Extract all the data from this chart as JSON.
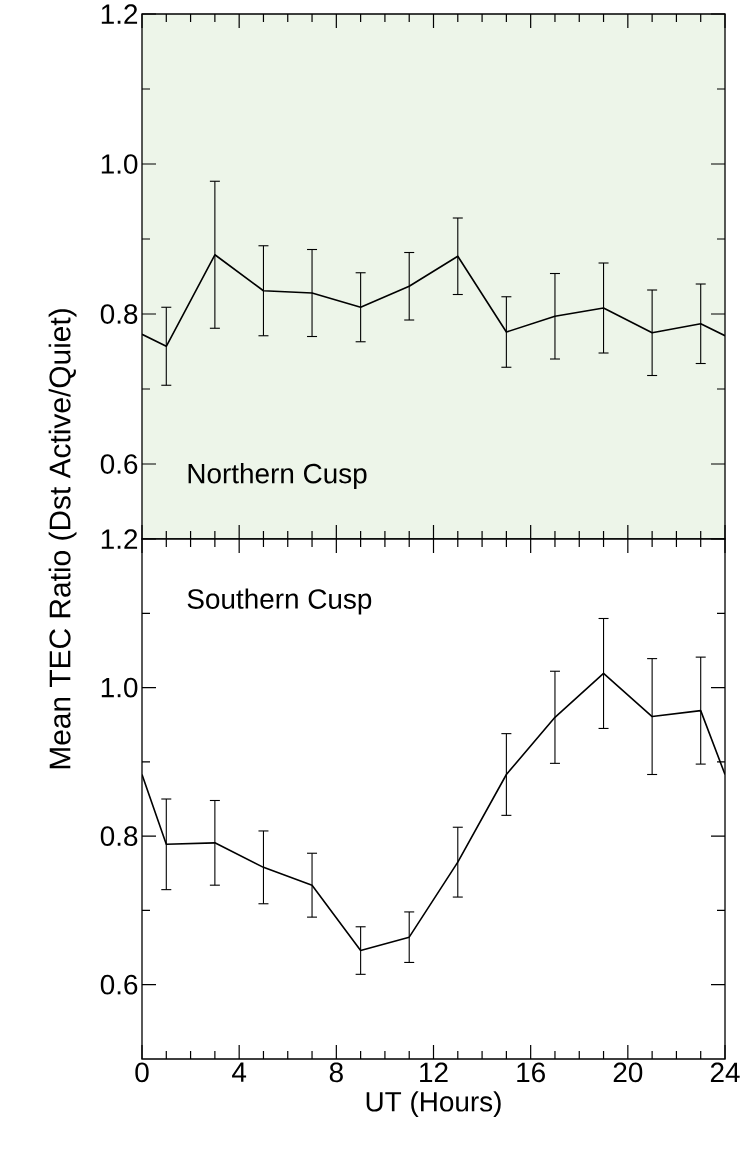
{
  "chart_data": [
    {
      "type": "line",
      "ylabel": "Mean TEC Ratio (Dst Active/Quiet)",
      "annotations": [
        "Northern Cusp"
      ],
      "x": [
        0,
        1,
        3,
        5,
        7,
        9,
        11,
        13,
        15,
        17,
        19,
        21,
        23,
        24
      ],
      "series": [
        {
          "color": "#000000",
          "values": [
            0.773,
            0.757,
            0.879,
            0.831,
            0.828,
            0.809,
            0.837,
            0.877,
            0.776,
            0.797,
            0.808,
            0.775,
            0.787,
            0.771
          ],
          "errors": [
            null,
            0.052,
            0.098,
            0.06,
            0.058,
            0.046,
            0.045,
            0.051,
            0.047,
            0.057,
            0.06,
            0.057,
            0.053,
            null
          ]
        }
      ],
      "xlim": [
        0,
        24
      ],
      "ylim": [
        0.5,
        1.2
      ],
      "xticks": [
        0,
        4,
        8,
        12,
        16,
        20,
        24
      ],
      "yticks": [
        {
          "value": 0.6,
          "label": "0.6"
        },
        {
          "value": 0.8,
          "label": "0.8"
        },
        {
          "value": 1.0,
          "label": "1.0"
        },
        {
          "value": 1.2,
          "label": "1.2"
        }
      ],
      "tick_labels": "y",
      "marker": "none",
      "line_style": "solid"
    },
    {
      "type": "line",
      "xlabel": "UT (Hours)",
      "annotations": [
        "Southern Cusp"
      ],
      "x": [
        0,
        1,
        3,
        5,
        7,
        9,
        11,
        13,
        15,
        17,
        19,
        21,
        23,
        24
      ],
      "series": [
        {
          "color": "#000000",
          "values": [
            0.883,
            0.789,
            0.791,
            0.758,
            0.734,
            0.646,
            0.664,
            0.765,
            0.883,
            0.96,
            1.019,
            0.961,
            0.969,
            0.883
          ],
          "errors": [
            null,
            0.061,
            0.057,
            0.049,
            0.043,
            0.032,
            0.034,
            0.047,
            0.055,
            0.062,
            0.074,
            0.078,
            0.072,
            null
          ]
        }
      ],
      "xlim": [
        0,
        24
      ],
      "ylim": [
        0.5,
        1.2
      ],
      "xticks": [
        0,
        4,
        8,
        12,
        16,
        20,
        24
      ],
      "yticks": [
        {
          "value": 0.6,
          "label": "0.6"
        },
        {
          "value": 0.8,
          "label": "0.8"
        },
        {
          "value": 1.0,
          "label": "1.0"
        },
        {
          "value": 1.2,
          "label": "1.2"
        }
      ],
      "marker": "none",
      "line_style": "solid"
    }
  ]
}
